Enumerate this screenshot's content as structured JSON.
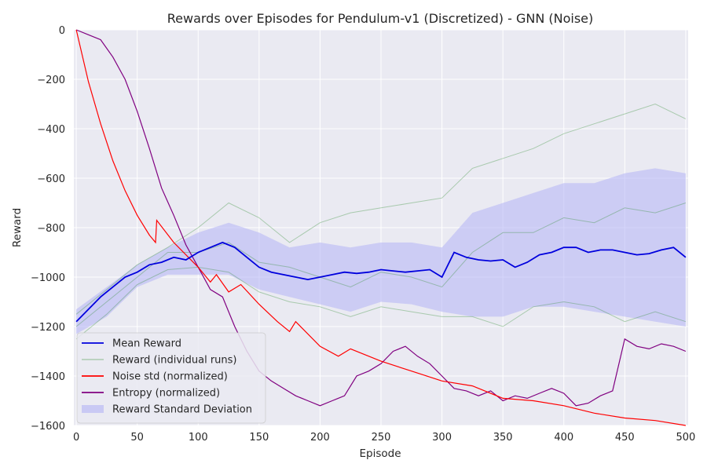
{
  "chart_data": {
    "type": "line",
    "title": "Rewards over Episodes for Pendulum-v1 (Discretized) - GNN (Noise)",
    "xlabel": "Episode",
    "ylabel": "Reward",
    "xlim": [
      -2,
      502
    ],
    "ylim": [
      -1600,
      0
    ],
    "xticks": [
      0,
      50,
      100,
      150,
      200,
      250,
      300,
      350,
      400,
      450,
      500
    ],
    "yticks": [
      0,
      -200,
      -400,
      -600,
      -800,
      -1000,
      -1200,
      -1400,
      -1600
    ],
    "grid": true,
    "legend_position": "bottom-left",
    "colors": {
      "plot_bg": "#eaeaf2",
      "grid": "#ffffff",
      "mean": "#0000dd",
      "runs": "#2e8b2e",
      "noise": "#ff0000",
      "entropy": "#800080",
      "std": "#b3b3f5"
    },
    "series": [
      {
        "name": "Mean Reward",
        "kind": "line",
        "x": [
          0,
          10,
          20,
          30,
          40,
          50,
          60,
          70,
          80,
          90,
          100,
          110,
          120,
          130,
          140,
          150,
          160,
          170,
          180,
          190,
          200,
          210,
          220,
          230,
          240,
          250,
          260,
          270,
          280,
          290,
          300,
          310,
          320,
          330,
          340,
          350,
          360,
          370,
          380,
          390,
          400,
          410,
          420,
          430,
          440,
          450,
          460,
          470,
          480,
          490,
          500
        ],
        "y": [
          -1180,
          -1130,
          -1080,
          -1040,
          -1000,
          -980,
          -950,
          -940,
          -920,
          -930,
          -900,
          -880,
          -860,
          -880,
          -920,
          -960,
          -980,
          -990,
          -1000,
          -1010,
          -1000,
          -990,
          -980,
          -985,
          -980,
          -970,
          -975,
          -980,
          -975,
          -970,
          -1000,
          -900,
          -920,
          -930,
          -935,
          -930,
          -960,
          -940,
          -910,
          -900,
          -880,
          -880,
          -900,
          -890,
          -890,
          -900,
          -910,
          -905,
          -890,
          -880,
          -920
        ]
      },
      {
        "name": "Reward (individual runs)",
        "kind": "lines",
        "x": [
          0,
          25,
          50,
          75,
          100,
          125,
          150,
          175,
          200,
          225,
          250,
          275,
          300,
          325,
          350,
          375,
          400,
          425,
          450,
          475,
          500
        ],
        "runs": [
          [
            -1150,
            -1050,
            -950,
            -880,
            -800,
            -700,
            -760,
            -860,
            -780,
            -740,
            -720,
            -700,
            -680,
            -560,
            -520,
            -480,
            -420,
            -380,
            -340,
            -300,
            -360
          ],
          [
            -1200,
            -1100,
            -1000,
            -900,
            -900,
            -860,
            -940,
            -960,
            -1000,
            -1040,
            -980,
            -1000,
            -1040,
            -900,
            -820,
            -820,
            -760,
            -780,
            -720,
            -740,
            -700
          ],
          [
            -1250,
            -1150,
            -1030,
            -970,
            -960,
            -980,
            -1060,
            -1100,
            -1120,
            -1160,
            -1120,
            -1140,
            -1160,
            -1160,
            -1200,
            -1120,
            -1100,
            -1120,
            -1180,
            -1140,
            -1180
          ]
        ]
      },
      {
        "name": "Noise std (normalized)",
        "kind": "line",
        "x": [
          0,
          10,
          20,
          30,
          40,
          50,
          60,
          65,
          66,
          80,
          100,
          110,
          115,
          125,
          135,
          150,
          165,
          175,
          180,
          200,
          215,
          225,
          250,
          275,
          300,
          325,
          350,
          375,
          400,
          425,
          450,
          475,
          500
        ],
        "y": [
          0,
          -210,
          -380,
          -530,
          -650,
          -750,
          -830,
          -860,
          -770,
          -860,
          -960,
          -1020,
          -990,
          -1060,
          -1030,
          -1110,
          -1180,
          -1220,
          -1180,
          -1280,
          -1320,
          -1290,
          -1340,
          -1380,
          -1420,
          -1440,
          -1490,
          -1500,
          -1520,
          -1550,
          -1570,
          -1580,
          -1600
        ]
      },
      {
        "name": "Entropy (normalized)",
        "kind": "line",
        "x": [
          0,
          10,
          20,
          30,
          40,
          50,
          60,
          70,
          80,
          90,
          100,
          110,
          120,
          130,
          140,
          150,
          160,
          170,
          180,
          190,
          200,
          210,
          220,
          230,
          240,
          250,
          260,
          270,
          280,
          290,
          300,
          310,
          320,
          330,
          340,
          350,
          360,
          370,
          380,
          390,
          400,
          410,
          420,
          430,
          440,
          450,
          460,
          470,
          480,
          490,
          500
        ],
        "y": [
          0,
          -20,
          -40,
          -110,
          -200,
          -330,
          -480,
          -640,
          -750,
          -870,
          -960,
          -1050,
          -1080,
          -1200,
          -1300,
          -1380,
          -1420,
          -1450,
          -1480,
          -1500,
          -1520,
          -1500,
          -1480,
          -1400,
          -1380,
          -1350,
          -1300,
          -1280,
          -1320,
          -1350,
          -1400,
          -1450,
          -1460,
          -1480,
          -1460,
          -1500,
          -1480,
          -1490,
          -1470,
          -1450,
          -1470,
          -1520,
          -1510,
          -1480,
          -1460,
          -1250,
          -1280,
          -1290,
          -1270,
          -1280,
          -1300
        ]
      },
      {
        "name": "Reward Standard Deviation",
        "kind": "band",
        "x": [
          0,
          25,
          50,
          75,
          100,
          125,
          150,
          175,
          200,
          225,
          250,
          275,
          300,
          325,
          350,
          375,
          400,
          425,
          450,
          475,
          500
        ],
        "upper": [
          -1130,
          -1040,
          -950,
          -880,
          -820,
          -780,
          -820,
          -880,
          -860,
          -880,
          -860,
          -860,
          -880,
          -740,
          -700,
          -660,
          -620,
          -620,
          -580,
          -560,
          -580
        ],
        "lower": [
          -1230,
          -1160,
          -1040,
          -990,
          -990,
          -990,
          -1050,
          -1080,
          -1110,
          -1140,
          -1100,
          -1110,
          -1140,
          -1160,
          -1160,
          -1120,
          -1120,
          -1140,
          -1160,
          -1180,
          -1200
        ]
      }
    ],
    "legend": [
      {
        "label": "Mean Reward",
        "style": "line",
        "color": "mean"
      },
      {
        "label": "Reward (individual runs)",
        "style": "thin",
        "color": "runs"
      },
      {
        "label": "Noise std (normalized)",
        "style": "line",
        "color": "noise"
      },
      {
        "label": "Entropy (normalized)",
        "style": "line",
        "color": "entropy"
      },
      {
        "label": "Reward Standard Deviation",
        "style": "patch",
        "color": "std"
      }
    ]
  }
}
